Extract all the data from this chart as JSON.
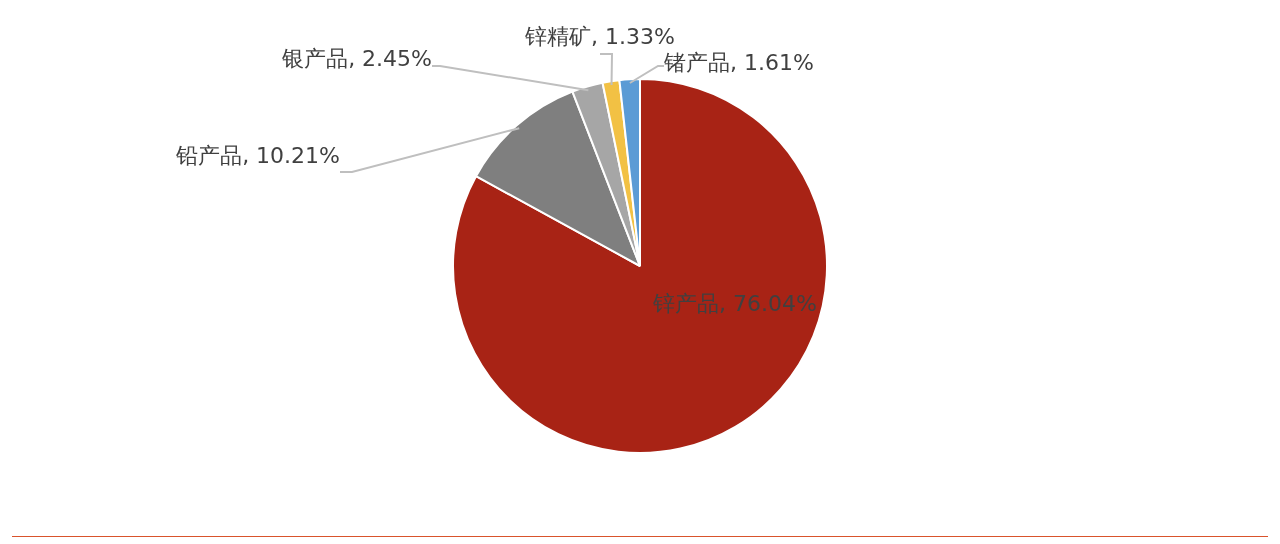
{
  "chart_data": {
    "type": "pie",
    "categories": [
      "锌产品",
      "铅产品",
      "银产品",
      "锌精矿",
      "锗产品"
    ],
    "values": [
      76.04,
      10.21,
      2.45,
      1.33,
      1.61
    ],
    "colors": [
      "#a82315",
      "#7f7f7f",
      "#a6a6a6",
      "#f2c144",
      "#5b9bd5"
    ],
    "value_labels": [
      "76.04%",
      "10.21%",
      "2.45%",
      "1.33%",
      "1.61%"
    ],
    "legend": false
  }
}
